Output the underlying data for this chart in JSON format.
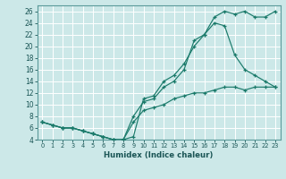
{
  "xlabel": "Humidex (Indice chaleur)",
  "ylabel": "",
  "background_color": "#cce8e8",
  "grid_color": "#ffffff",
  "line_color": "#1a7a6a",
  "xlim": [
    -0.5,
    23.5
  ],
  "ylim": [
    4,
    27
  ],
  "x_ticks": [
    0,
    1,
    2,
    3,
    4,
    5,
    6,
    7,
    8,
    9,
    10,
    11,
    12,
    13,
    14,
    15,
    16,
    17,
    18,
    19,
    20,
    21,
    22,
    23
  ],
  "y_ticks": [
    4,
    6,
    8,
    10,
    12,
    14,
    16,
    18,
    20,
    22,
    24,
    26
  ],
  "line1_x": [
    0,
    1,
    2,
    3,
    4,
    5,
    6,
    7,
    8,
    9,
    10,
    11,
    12,
    13,
    14,
    15,
    16,
    17,
    18,
    19,
    20,
    21,
    22,
    23
  ],
  "line1_y": [
    7,
    6.5,
    6,
    6,
    5.5,
    5,
    4.5,
    4,
    4,
    4.5,
    11,
    11.5,
    14,
    15,
    17,
    20,
    22,
    25,
    26,
    25.5,
    26,
    25,
    25,
    26
  ],
  "line2_x": [
    0,
    1,
    2,
    3,
    4,
    5,
    6,
    7,
    8,
    9,
    10,
    11,
    12,
    13,
    14,
    15,
    16,
    17,
    18,
    19,
    20,
    21,
    22,
    23
  ],
  "line2_y": [
    7,
    6.5,
    6,
    6,
    5.5,
    5,
    4.5,
    4,
    4,
    8,
    10.5,
    11,
    13,
    14,
    16,
    21,
    22,
    24,
    23.5,
    18.5,
    16,
    15,
    14,
    13
  ],
  "line3_x": [
    0,
    1,
    2,
    3,
    4,
    5,
    6,
    7,
    8,
    9,
    10,
    11,
    12,
    13,
    14,
    15,
    16,
    17,
    18,
    19,
    20,
    21,
    22,
    23
  ],
  "line3_y": [
    7,
    6.5,
    6,
    6,
    5.5,
    5,
    4.5,
    4,
    4,
    7,
    9,
    9.5,
    10,
    11,
    11.5,
    12,
    12,
    12.5,
    13,
    13,
    12.5,
    13,
    13,
    13
  ]
}
